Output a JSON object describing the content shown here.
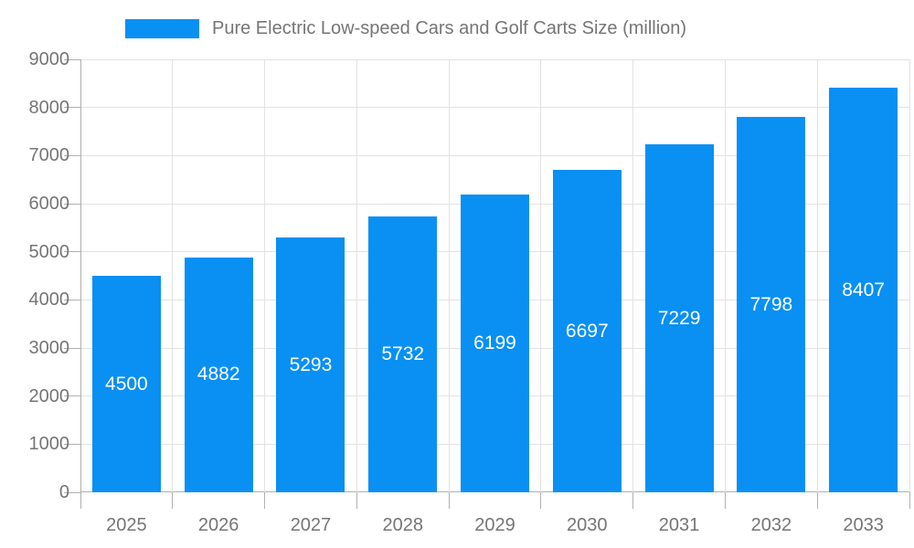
{
  "chart_data": {
    "type": "bar",
    "title": "Pure Electric Low-speed Cars and Golf Carts Size (million)",
    "categories": [
      "2025",
      "2026",
      "2027",
      "2028",
      "2029",
      "2030",
      "2031",
      "2032",
      "2033"
    ],
    "values": [
      4500,
      4882,
      5293,
      5732,
      6199,
      6697,
      7229,
      7798,
      8407
    ],
    "xlabel": "",
    "ylabel": "",
    "ylim": [
      0,
      9000
    ],
    "ytick_step": 1000,
    "grid": true,
    "legend_position": "top",
    "value_labels_position": "inside-center"
  },
  "colors": {
    "bar": "#0990f2",
    "grid": "#e2e2e2",
    "axis": "#b0b0b0",
    "axis_text": "#757575",
    "title_text": "#757575",
    "value_label_text": "#ffffff",
    "background": "#ffffff"
  }
}
